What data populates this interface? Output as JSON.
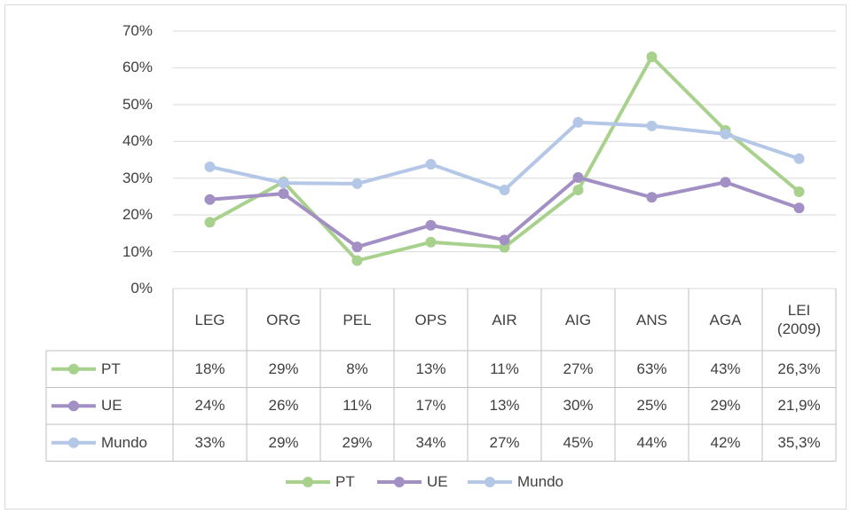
{
  "chart_data": {
    "type": "line",
    "categories": [
      "LEG",
      "ORG",
      "PEL",
      "OPS",
      "AIR",
      "AIG",
      "ANS",
      "AGA",
      "LEI (2009)"
    ],
    "series": [
      {
        "name": "PT",
        "color": "#a9d18e",
        "values": [
          18,
          29,
          7.6,
          12.6,
          11.2,
          26.8,
          63,
          43,
          26.3
        ],
        "value_labels": [
          "18%",
          "29%",
          "8%",
          "13%",
          "11%",
          "27%",
          "63%",
          "43%",
          "26,3%"
        ]
      },
      {
        "name": "UE",
        "color": "#a28fc4",
        "values": [
          24.2,
          25.8,
          11.3,
          17.2,
          13.2,
          30.2,
          24.8,
          28.9,
          21.9
        ],
        "value_labels": [
          "24%",
          "26%",
          "11%",
          "17%",
          "13%",
          "30%",
          "25%",
          "29%",
          "21,9%"
        ]
      },
      {
        "name": "Mundo",
        "color": "#b4c7e7",
        "values": [
          33.1,
          28.7,
          28.5,
          33.8,
          26.8,
          45.2,
          44.2,
          42,
          35.3
        ],
        "value_labels": [
          "33%",
          "29%",
          "29%",
          "34%",
          "27%",
          "45%",
          "44%",
          "42%",
          "35,3%"
        ]
      }
    ],
    "ylim": [
      0,
      70
    ],
    "yticks": [
      {
        "value": 0,
        "label": "0%"
      },
      {
        "value": 10,
        "label": "10%"
      },
      {
        "value": 20,
        "label": "20%"
      },
      {
        "value": 30,
        "label": "30%"
      },
      {
        "value": 40,
        "label": "40%"
      },
      {
        "value": 50,
        "label": "50%"
      },
      {
        "value": 60,
        "label": "60%"
      },
      {
        "value": 70,
        "label": "70%"
      }
    ],
    "grid": true,
    "legend": "bottom"
  }
}
